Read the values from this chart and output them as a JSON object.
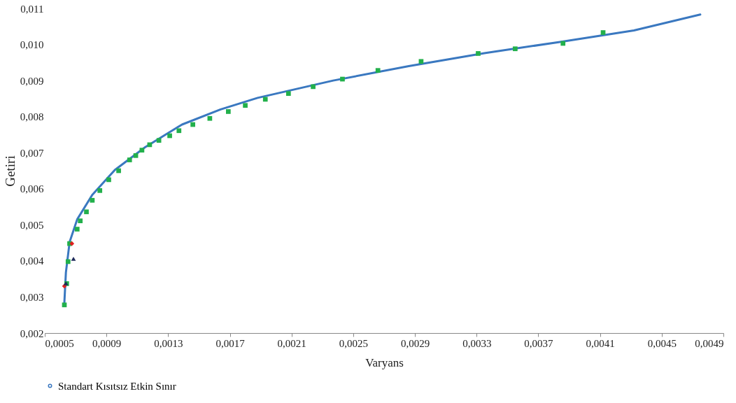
{
  "chart_data": {
    "type": "scatter",
    "xlabel": "Varyans",
    "ylabel": "Getiri",
    "xlim": [
      0.0005,
      0.0049
    ],
    "ylim": [
      0.002,
      0.011
    ],
    "xticks": [
      {
        "value": 0.0005,
        "label": "0,0005"
      },
      {
        "value": 0.0009,
        "label": "0,0009"
      },
      {
        "value": 0.0013,
        "label": "0,0013"
      },
      {
        "value": 0.0017,
        "label": "0,0017"
      },
      {
        "value": 0.0021,
        "label": "0,0021"
      },
      {
        "value": 0.0025,
        "label": "0,0025"
      },
      {
        "value": 0.0029,
        "label": "0,0029"
      },
      {
        "value": 0.0033,
        "label": "0,0033"
      },
      {
        "value": 0.0037,
        "label": "0,0037"
      },
      {
        "value": 0.0041,
        "label": "0,0041"
      },
      {
        "value": 0.0045,
        "label": "0,0045"
      },
      {
        "value": 0.0049,
        "label": "0,0049"
      }
    ],
    "yticks": [
      {
        "value": 0.002,
        "label": "0,002"
      },
      {
        "value": 0.003,
        "label": "0,003"
      },
      {
        "value": 0.004,
        "label": "0,004"
      },
      {
        "value": 0.005,
        "label": "0,005"
      },
      {
        "value": 0.006,
        "label": "0,006"
      },
      {
        "value": 0.007,
        "label": "0,007"
      },
      {
        "value": 0.008,
        "label": "0,008"
      },
      {
        "value": 0.009,
        "label": "0,009"
      },
      {
        "value": 0.01,
        "label": "0,010"
      },
      {
        "value": 0.011,
        "label": "0,011"
      }
    ],
    "grid": false,
    "legend": "bottom",
    "series": [
      {
        "name": "Standart Kısıtsız Etkin Sınır",
        "type": "line",
        "color": "#3a78c0",
        "marker": "none",
        "x": [
          0.000627,
          0.000637,
          0.000661,
          0.00071,
          0.000808,
          0.000954,
          0.00115,
          0.00139,
          0.00164,
          0.00188,
          0.00237,
          0.00286,
          0.00335,
          0.00384,
          0.00432,
          0.00475
        ],
        "values": [
          0.00284,
          0.00368,
          0.00452,
          0.00515,
          0.00583,
          0.00652,
          0.00715,
          0.00778,
          0.0082,
          0.00852,
          0.009,
          0.0094,
          0.00976,
          0.01007,
          0.01039,
          0.01083
        ]
      },
      {
        "color": "#22b04b",
        "marker": "square",
        "x": [
          0.000627,
          0.000642,
          0.000651,
          0.000661,
          0.00071,
          0.00073,
          0.00077,
          0.000808,
          0.000857,
          0.000915,
          0.000979,
          0.00105,
          0.00109,
          0.00113,
          0.00118,
          0.00124,
          0.00131,
          0.00137,
          0.00146,
          0.00157,
          0.00169,
          0.0018,
          0.00193,
          0.00208,
          0.00224,
          0.00243,
          0.00266,
          0.00294,
          0.00331,
          0.00355,
          0.00386,
          0.00412
        ],
        "values": [
          0.00278,
          0.00337,
          0.00398,
          0.00448,
          0.00488,
          0.00511,
          0.00536,
          0.00568,
          0.00595,
          0.00625,
          0.0065,
          0.0068,
          0.00692,
          0.00707,
          0.00722,
          0.00734,
          0.00747,
          0.00761,
          0.00778,
          0.00795,
          0.00814,
          0.00831,
          0.00848,
          0.00864,
          0.00883,
          0.00904,
          0.00928,
          0.00953,
          0.00975,
          0.00988,
          0.01003,
          0.01033
        ]
      },
      {
        "color": "#e02020",
        "marker": "diamond",
        "x": [
          0.000627,
          0.000676
        ],
        "values": [
          0.0033,
          0.00448
        ]
      },
      {
        "color": "#1f2a5a",
        "marker": "triangle",
        "x": [
          0.000637,
          0.000686
        ],
        "values": [
          0.00338,
          0.00406
        ]
      }
    ]
  }
}
